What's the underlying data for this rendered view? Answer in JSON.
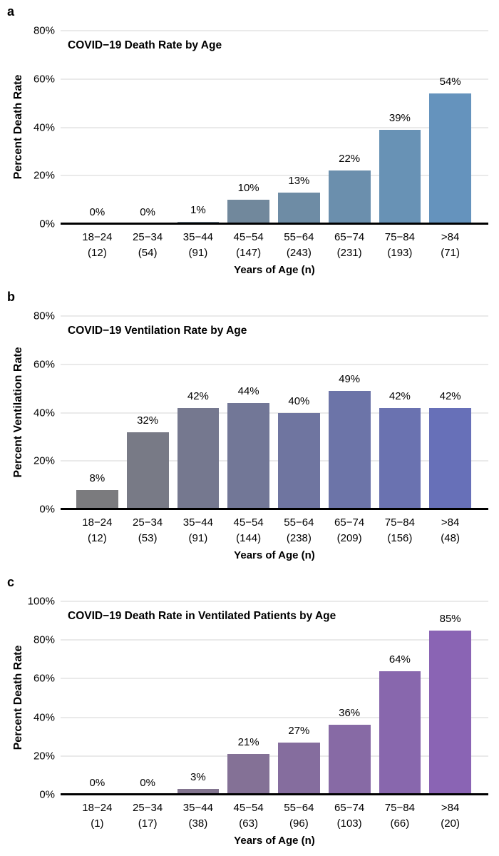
{
  "colors": {
    "background": "#ffffff",
    "grid": "#d6d6d6",
    "axis": "#000000",
    "text": "#000000"
  },
  "chart_data": [
    {
      "type": "bar",
      "panel_letter": "a",
      "title": "COVID−19 Death Rate by Age",
      "ylabel": "Percent Death Rate",
      "xlabel": "Years of Age (n)",
      "categories": [
        "18−24",
        "25−34",
        "35−44",
        "45−54",
        "55−64",
        "65−74",
        "75−84",
        ">84"
      ],
      "n_labels": [
        "(12)",
        "(54)",
        "(91)",
        "(147)",
        "(243)",
        "(231)",
        "(193)",
        "(71)"
      ],
      "values": [
        0,
        0,
        1,
        10,
        13,
        22,
        39,
        54
      ],
      "value_labels": [
        "0%",
        "0%",
        "1%",
        "10%",
        "13%",
        "22%",
        "39%",
        "54%"
      ],
      "ylim": [
        0,
        80
      ],
      "ytick_values": [
        0,
        20,
        40,
        60,
        80
      ],
      "ytick_labels": [
        "0%",
        "20%",
        "40%",
        "60%",
        "80%"
      ],
      "grid": true,
      "legend": "none",
      "bar_colors": [
        "#7a7e84",
        "#77818c",
        "#748594",
        "#71889c",
        "#6e8ca5",
        "#6b8fad",
        "#6892b5",
        "#6593bd"
      ]
    },
    {
      "type": "bar",
      "panel_letter": "b",
      "title": "COVID−19 Ventilation Rate by Age",
      "ylabel": "Percent Ventilation Rate",
      "xlabel": "Years of Age (n)",
      "categories": [
        "18−24",
        "25−34",
        "35−44",
        "45−54",
        "55−64",
        "65−74",
        "75−84",
        ">84"
      ],
      "n_labels": [
        "(12)",
        "(53)",
        "(91)",
        "(144)",
        "(238)",
        "(209)",
        "(156)",
        "(48)"
      ],
      "values": [
        8,
        32,
        42,
        44,
        40,
        49,
        42,
        42
      ],
      "value_labels": [
        "8%",
        "32%",
        "42%",
        "44%",
        "40%",
        "49%",
        "42%",
        "42%"
      ],
      "ylim": [
        0,
        80
      ],
      "ytick_values": [
        0,
        20,
        40,
        60,
        80
      ],
      "ytick_labels": [
        "0%",
        "20%",
        "40%",
        "60%",
        "80%"
      ],
      "grid": true,
      "legend": "none",
      "bar_colors": [
        "#7b7b7e",
        "#787a86",
        "#75788f",
        "#727797",
        "#6f75a0",
        "#6c74a8",
        "#6a72b0",
        "#6770b8"
      ]
    },
    {
      "type": "bar",
      "panel_letter": "c",
      "title": "COVID−19 Death Rate in Ventilated Patients by Age",
      "ylabel": "Percent Death Rate",
      "xlabel": "Years of Age (n)",
      "categories": [
        "18−24",
        "25−34",
        "35−44",
        "45−54",
        "55−64",
        "65−74",
        "75−84",
        ">84"
      ],
      "n_labels": [
        "(1)",
        "(17)",
        "(38)",
        "(63)",
        "(96)",
        "(103)",
        "(66)",
        "(20)"
      ],
      "values": [
        0,
        0,
        3,
        21,
        27,
        36,
        64,
        85
      ],
      "value_labels": [
        "0%",
        "0%",
        "3%",
        "21%",
        "27%",
        "36%",
        "64%",
        "85%"
      ],
      "ylim": [
        0,
        100
      ],
      "ytick_values": [
        0,
        20,
        40,
        60,
        80,
        100
      ],
      "ytick_labels": [
        "0%",
        "20%",
        "40%",
        "60%",
        "80%",
        "100%"
      ],
      "grid": true,
      "legend": "none",
      "bar_colors": [
        "#7f7a80",
        "#817787",
        "#82748f",
        "#847196",
        "#856d9e",
        "#876aa5",
        "#8867ad",
        "#8a64b4"
      ]
    }
  ]
}
